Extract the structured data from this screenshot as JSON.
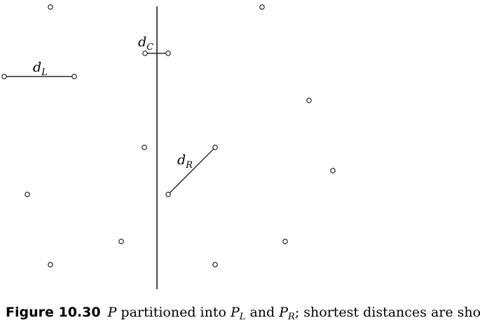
{
  "diagram": {
    "labels": {
      "d_left": {
        "main": "d",
        "sub": "L"
      },
      "d_center": {
        "main": "d",
        "sub": "C"
      },
      "d_right": {
        "main": "d",
        "sub": "R"
      }
    }
  },
  "caption": {
    "figure_label": "Figure 10.30",
    "p": "P",
    "text_1": " partitioned into ",
    "pl_main": "P",
    "pl_sub": "L",
    "text_2": " and ",
    "pr_main": "P",
    "pr_sub": "R",
    "text_3": "; shortest distances are shown"
  }
}
